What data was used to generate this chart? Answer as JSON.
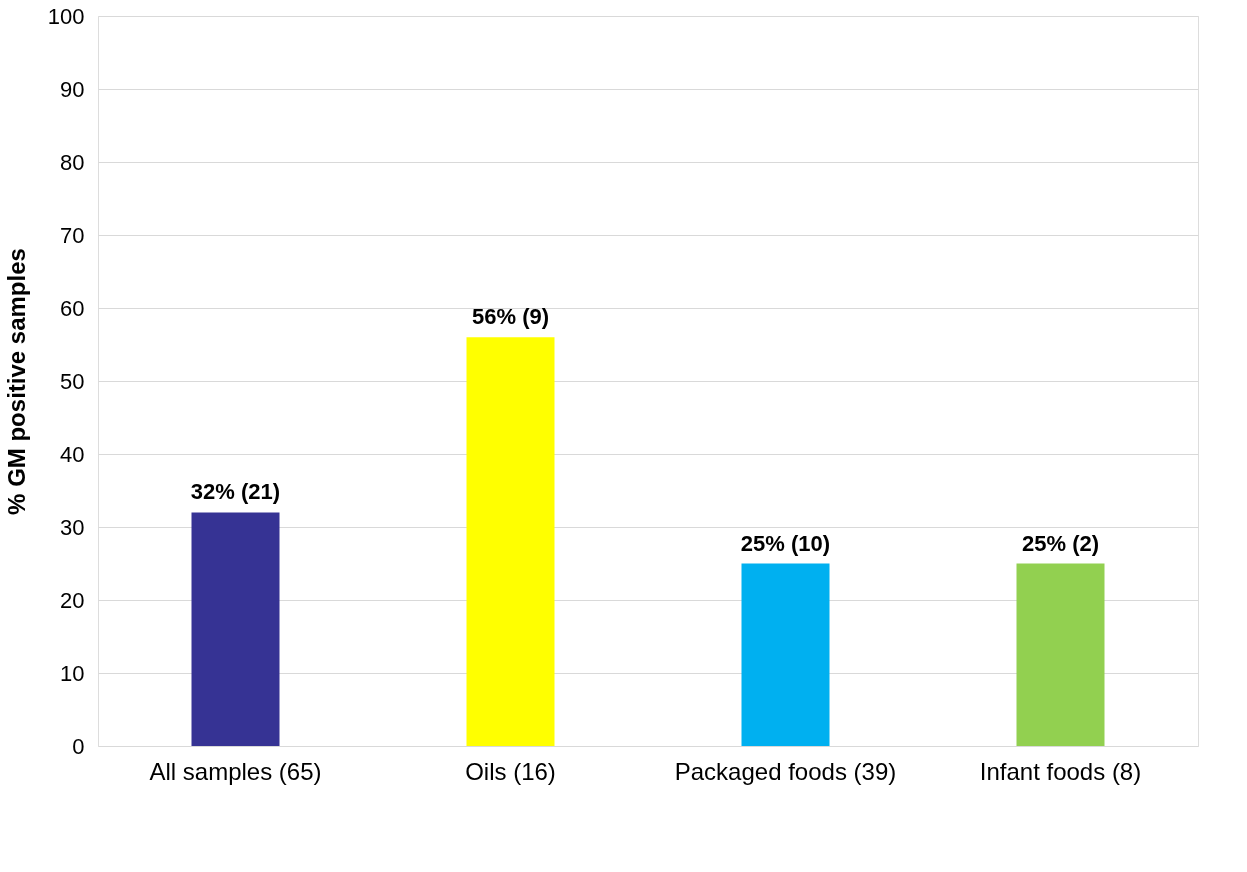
{
  "chart_data": {
    "type": "bar",
    "ylabel": "% GM positive samples",
    "categories": [
      "All samples (65)",
      "Oils (16)",
      "Packaged foods (39)",
      "Infant foods (8)"
    ],
    "values": [
      32,
      56,
      25,
      25
    ],
    "colors": [
      "#363394",
      "#ffff00",
      "#00b0f0",
      "#92d050"
    ],
    "value_labels": [
      "32% (21)",
      "56% (9)",
      "25% (10)",
      "25% (2)"
    ],
    "ylim": [
      0,
      100
    ],
    "yticks": [
      0,
      10,
      20,
      30,
      40,
      50,
      60,
      70,
      80,
      90,
      100
    ],
    "grid": "y"
  }
}
